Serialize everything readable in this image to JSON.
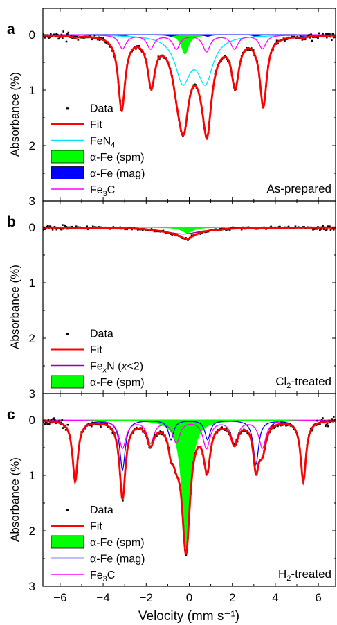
{
  "chart_data": {
    "type": "scatter",
    "xlabel": "Velocity (mm s⁻¹)",
    "ylabel": "Absorbance (%)",
    "xlim": [
      -6.8,
      6.8
    ],
    "ylim": [
      0,
      3
    ],
    "y_inverted": true,
    "x_ticks": [
      "−6",
      "−4",
      "−2",
      "0",
      "2",
      "4",
      "6"
    ],
    "x_tick_values": [
      -6,
      -4,
      -2,
      0,
      2,
      4,
      6
    ],
    "y_ticks": [
      "0",
      "1",
      "2",
      "3"
    ],
    "y_tick_values": [
      0,
      1,
      2,
      3
    ],
    "colors": {
      "data": "#000000",
      "fit": "#ff0000",
      "fen4": "#00e5ff",
      "spm": "#00ff00",
      "mag": "#0000ff",
      "fe3c": "#ff00ff",
      "fexn": "#990099"
    },
    "panels": [
      {
        "letter": "a",
        "condition": "As-prepared",
        "legend": [
          {
            "key": "data",
            "label": "Data",
            "style": "dot"
          },
          {
            "key": "fit",
            "label": "Fit",
            "style": "thick-line"
          },
          {
            "key": "fen4",
            "label": "FeN",
            "sub": "4",
            "style": "line"
          },
          {
            "key": "spm",
            "label": "α-Fe (spm)",
            "style": "box"
          },
          {
            "key": "mag",
            "label": "α-Fe (mag)",
            "style": "box"
          },
          {
            "key": "fe3c",
            "label": "Fe",
            "sub": "3",
            "tail": "C",
            "style": "line"
          }
        ],
        "components": [
          {
            "key": "spm",
            "fill": true,
            "peaks": [
              {
                "x0": -0.2,
                "depth": 0.35,
                "width": 0.4
              }
            ]
          },
          {
            "key": "mag",
            "fill": true,
            "peaks": [
              {
                "x0": -5.3,
                "depth": 0.03,
                "width": 0.35
              },
              {
                "x0": -3.1,
                "depth": 0.03,
                "width": 0.35
              },
              {
                "x0": -0.85,
                "depth": 0.03,
                "width": 0.35
              },
              {
                "x0": 0.85,
                "depth": 0.03,
                "width": 0.35
              },
              {
                "x0": 3.1,
                "depth": 0.03,
                "width": 0.35
              },
              {
                "x0": 5.3,
                "depth": 0.03,
                "width": 0.35
              }
            ]
          },
          {
            "key": "fen4",
            "fill": false,
            "peaks": [
              {
                "x0": -0.3,
                "depth": 0.8,
                "width": 0.85
              },
              {
                "x0": 0.75,
                "depth": 0.8,
                "width": 0.85
              }
            ]
          },
          {
            "key": "fe3c",
            "fill": false,
            "peaks": [
              {
                "x0": -3.1,
                "depth": 0.25,
                "width": 0.4
              },
              {
                "x0": -1.8,
                "depth": 0.25,
                "width": 0.4
              },
              {
                "x0": -0.6,
                "depth": 0.25,
                "width": 0.4
              },
              {
                "x0": 0.8,
                "depth": 0.3,
                "width": 0.4
              },
              {
                "x0": 2.1,
                "depth": 0.25,
                "width": 0.4
              },
              {
                "x0": 3.4,
                "depth": 0.25,
                "width": 0.4
              }
            ]
          }
        ],
        "fit_extra": [
          {
            "x0": -3.15,
            "depth": 1.05,
            "width": 0.38
          },
          {
            "x0": -1.75,
            "depth": 0.6,
            "width": 0.4
          },
          {
            "x0": -0.35,
            "depth": 0.5,
            "width": 0.5
          },
          {
            "x0": 0.85,
            "depth": 0.6,
            "width": 0.45
          },
          {
            "x0": 2.15,
            "depth": 0.6,
            "width": 0.4
          },
          {
            "x0": 3.45,
            "depth": 1.0,
            "width": 0.38
          }
        ],
        "noise": 0.03,
        "npoints": 300
      },
      {
        "letter": "b",
        "condition": "Cl",
        "condition_sub": "2",
        "condition_tail": "-treated",
        "legend": [
          {
            "key": "data",
            "label": "Data",
            "style": "dot"
          },
          {
            "key": "fit",
            "label": "Fit",
            "style": "thick-line"
          },
          {
            "key": "fexn",
            "label": "Fe",
            "sub": "x",
            "tail": "N (",
            "italic": "x",
            "tail2": "<2)",
            "style": "line"
          },
          {
            "key": "spm",
            "label": "α-Fe (spm)",
            "style": "box"
          }
        ],
        "components": [
          {
            "key": "spm",
            "fill": true,
            "peaks": [
              {
                "x0": -0.1,
                "depth": 0.1,
                "width": 0.6
              }
            ]
          },
          {
            "key": "fexn",
            "fill": false,
            "peaks": [
              {
                "x0": -0.3,
                "depth": 0.12,
                "width": 2.2
              }
            ]
          }
        ],
        "fit_extra": [],
        "noise": 0.02,
        "npoints": 300
      },
      {
        "letter": "c",
        "condition": "H",
        "condition_sub": "2",
        "condition_tail": "-treated",
        "legend": [
          {
            "key": "data",
            "label": "Data",
            "style": "dot"
          },
          {
            "key": "fit",
            "label": "Fit",
            "style": "thick-line"
          },
          {
            "key": "spm",
            "label": "α-Fe (spm)",
            "style": "box"
          },
          {
            "key": "mag",
            "label": "α-Fe (mag)",
            "style": "line"
          },
          {
            "key": "fe3c",
            "label": "Fe",
            "sub": "3",
            "tail": "C",
            "style": "line"
          }
        ],
        "components": [
          {
            "key": "spm",
            "fill": true,
            "peaks": [
              {
                "x0": -0.15,
                "depth": 2.3,
                "width": 0.45
              }
            ]
          },
          {
            "key": "mag",
            "fill": false,
            "peaks": [
              {
                "x0": -5.3,
                "depth": 1.1,
                "width": 0.3
              },
              {
                "x0": -3.1,
                "depth": 0.9,
                "width": 0.3
              },
              {
                "x0": -0.85,
                "depth": 0.35,
                "width": 0.3
              },
              {
                "x0": 0.85,
                "depth": 0.35,
                "width": 0.3
              },
              {
                "x0": 3.1,
                "depth": 0.8,
                "width": 0.3
              },
              {
                "x0": 5.3,
                "depth": 1.1,
                "width": 0.3
              }
            ]
          },
          {
            "key": "fe3c",
            "fill": false,
            "peaks": [
              {
                "x0": -3.1,
                "depth": 0.5,
                "width": 0.4
              },
              {
                "x0": -1.8,
                "depth": 0.4,
                "width": 0.4
              },
              {
                "x0": -0.6,
                "depth": 0.4,
                "width": 0.4
              },
              {
                "x0": 0.8,
                "depth": 0.5,
                "width": 0.4
              },
              {
                "x0": 2.1,
                "depth": 0.4,
                "width": 0.4
              },
              {
                "x0": 3.4,
                "depth": 0.5,
                "width": 0.4
              }
            ]
          }
        ],
        "fit_extra": [],
        "noise": 0.035,
        "npoints": 320
      }
    ]
  }
}
